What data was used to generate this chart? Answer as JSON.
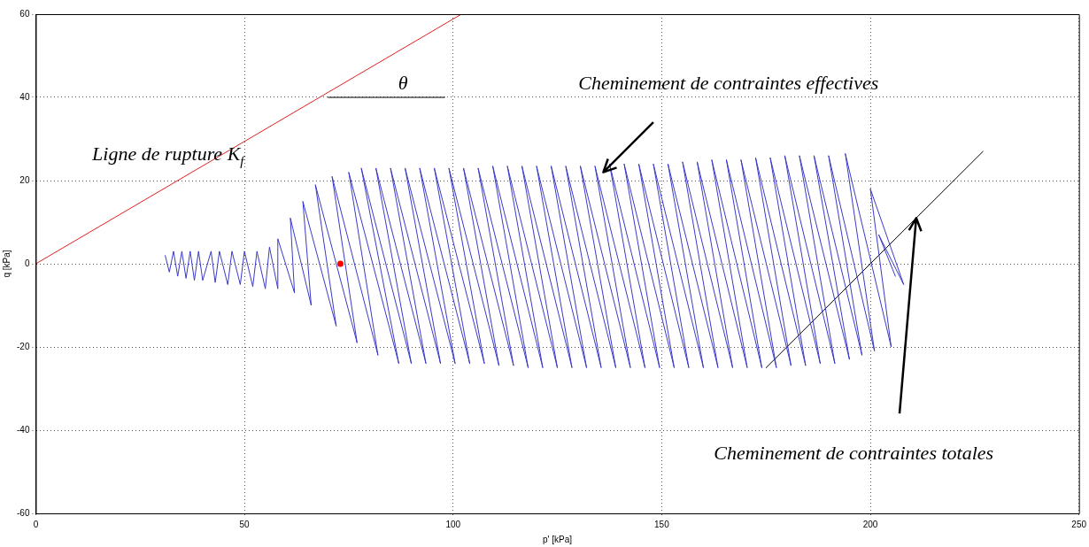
{
  "chart_data": {
    "type": "line",
    "xlabel": "p' [kPa]",
    "ylabel": "q [kPa]",
    "xlim": [
      0,
      250
    ],
    "xticks": [
      0,
      50,
      100,
      150,
      200,
      250
    ],
    "ylim": [
      -60,
      60
    ],
    "yticks": [
      -60,
      -40,
      -20,
      0,
      20,
      40,
      60
    ],
    "grid": true,
    "legend": false,
    "marker": "none",
    "line_style": "solid",
    "series": [
      {
        "name": "Ligne de rupture K$_{f}$",
        "color": "#e02020",
        "x": [
          0,
          102
        ],
        "values": [
          0,
          60
        ]
      },
      {
        "color": "#3a3ac8",
        "x": [
          31,
          32,
          33,
          34,
          35,
          36,
          37,
          38,
          39,
          40,
          42,
          43,
          44,
          46,
          47,
          49,
          50,
          52,
          53,
          55,
          56,
          58,
          58,
          62,
          61,
          66,
          64,
          72,
          67,
          77,
          71,
          82,
          75,
          87,
          78,
          90,
          81.5,
          93.5,
          85,
          97,
          88.5,
          100.5,
          92,
          104,
          95.5,
          107.5,
          99,
          111,
          102.5,
          114.5,
          106,
          118,
          109.5,
          121.5,
          113,
          125,
          116.5,
          128.5,
          120,
          132,
          123.5,
          135.5,
          127,
          139,
          130.5,
          142.5,
          134,
          146,
          137.5,
          149.5,
          141,
          153,
          144.5,
          156.5,
          148,
          160,
          151.5,
          163.5,
          155,
          167,
          158.5,
          170.5,
          162,
          174,
          165.5,
          177.5,
          169,
          181,
          172.5,
          184.5,
          176,
          188,
          179.5,
          191.5,
          183,
          195,
          186.5,
          198,
          190,
          201,
          194,
          205,
          200,
          208,
          202,
          206
        ],
        "values": [
          2,
          -2,
          3,
          -3,
          3,
          -3.5,
          3,
          -4,
          3,
          -4,
          3,
          -4.5,
          3,
          -5,
          3,
          -5,
          3,
          -5.5,
          3,
          -6,
          4,
          -6,
          6,
          -7,
          11,
          -10,
          15,
          -15,
          19,
          -19,
          21,
          -22,
          22,
          -24,
          23,
          -24,
          23,
          -24,
          23,
          -24,
          23,
          -24,
          23,
          -24,
          23,
          -24,
          23,
          -24.5,
          23,
          -24.5,
          23,
          -25,
          23.5,
          -25,
          23.5,
          -25,
          23.5,
          -25,
          23.5,
          -25,
          23.5,
          -25,
          23.5,
          -25,
          23.5,
          -25,
          23.5,
          -25,
          24,
          -25,
          24,
          -25,
          24,
          -25,
          24,
          -25,
          24,
          -25,
          24.5,
          -25,
          24.5,
          -25,
          25,
          -25,
          25,
          -25,
          25,
          -24.5,
          25.5,
          -24.5,
          25.5,
          -24,
          26,
          -24,
          26,
          -23,
          26,
          -22,
          26,
          -21,
          26.5,
          -20,
          18,
          -5,
          7,
          -3
        ]
      },
      {
        "color": "#000000",
        "x": [
          175,
          227
        ],
        "values": [
          -25,
          27
        ]
      },
      {
        "color": "#000000",
        "x": [
          70,
          98
        ],
        "values": [
          40,
          40
        ]
      },
      {
        "type": "scatter",
        "marker": "circle",
        "color": "#ff0000",
        "x": [
          73
        ],
        "values": [
          0
        ]
      }
    ],
    "annotations": [
      "θ",
      "Cheminement de contraintes effectives",
      "Cheminement de contraintes totales"
    ]
  }
}
